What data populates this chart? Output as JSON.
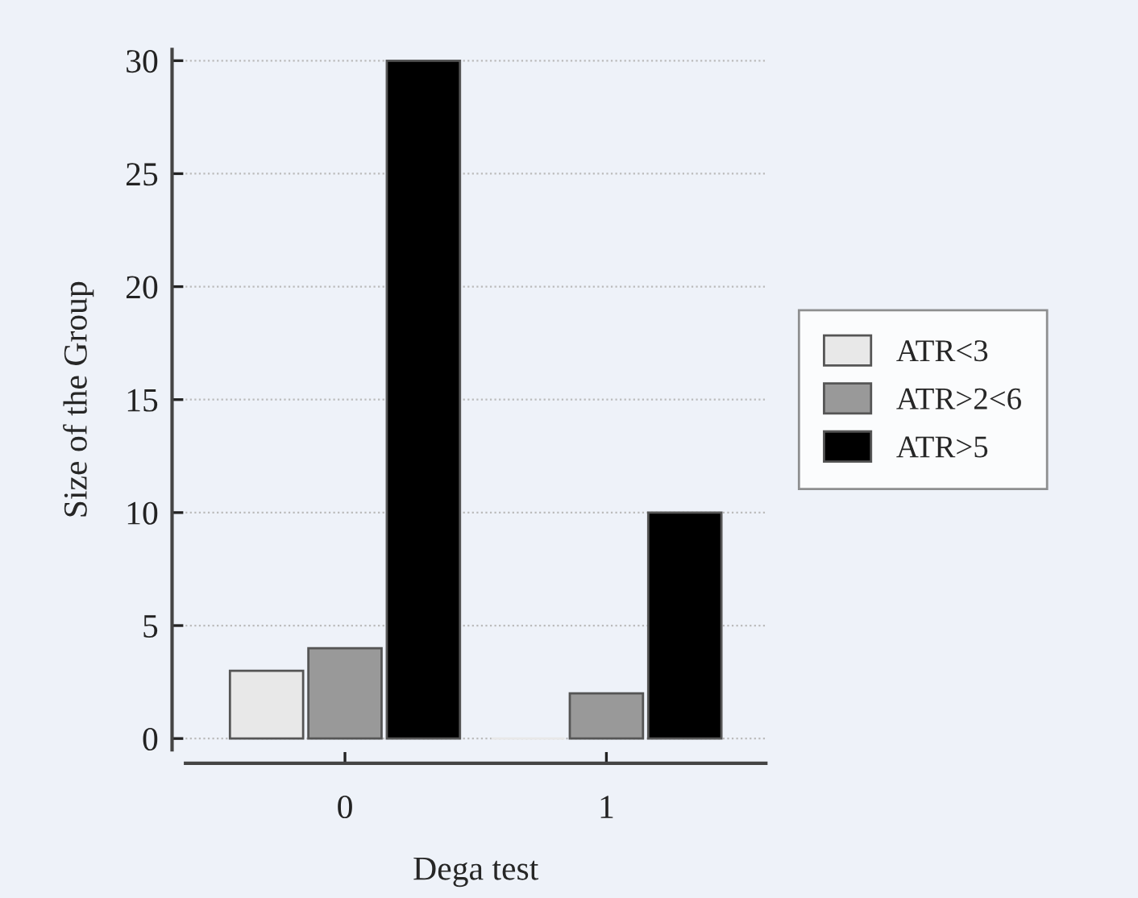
{
  "chart_data": {
    "type": "bar",
    "xlabel": "Dega test",
    "ylabel": "Size of the Group",
    "categories": [
      "0",
      "1"
    ],
    "series": [
      {
        "name": "ATR<3",
        "color": "#e8e8e8",
        "values": [
          3,
          0
        ]
      },
      {
        "name": "ATR>2<6",
        "color": "#999999",
        "values": [
          4,
          2
        ]
      },
      {
        "name": "ATR>5",
        "color": "#000000",
        "values": [
          30,
          10
        ]
      }
    ],
    "ylim": [
      -0.5,
      30.5
    ],
    "yticks": [
      0,
      5,
      10,
      15,
      20,
      25,
      30
    ],
    "grid": "y",
    "legend": "right"
  }
}
